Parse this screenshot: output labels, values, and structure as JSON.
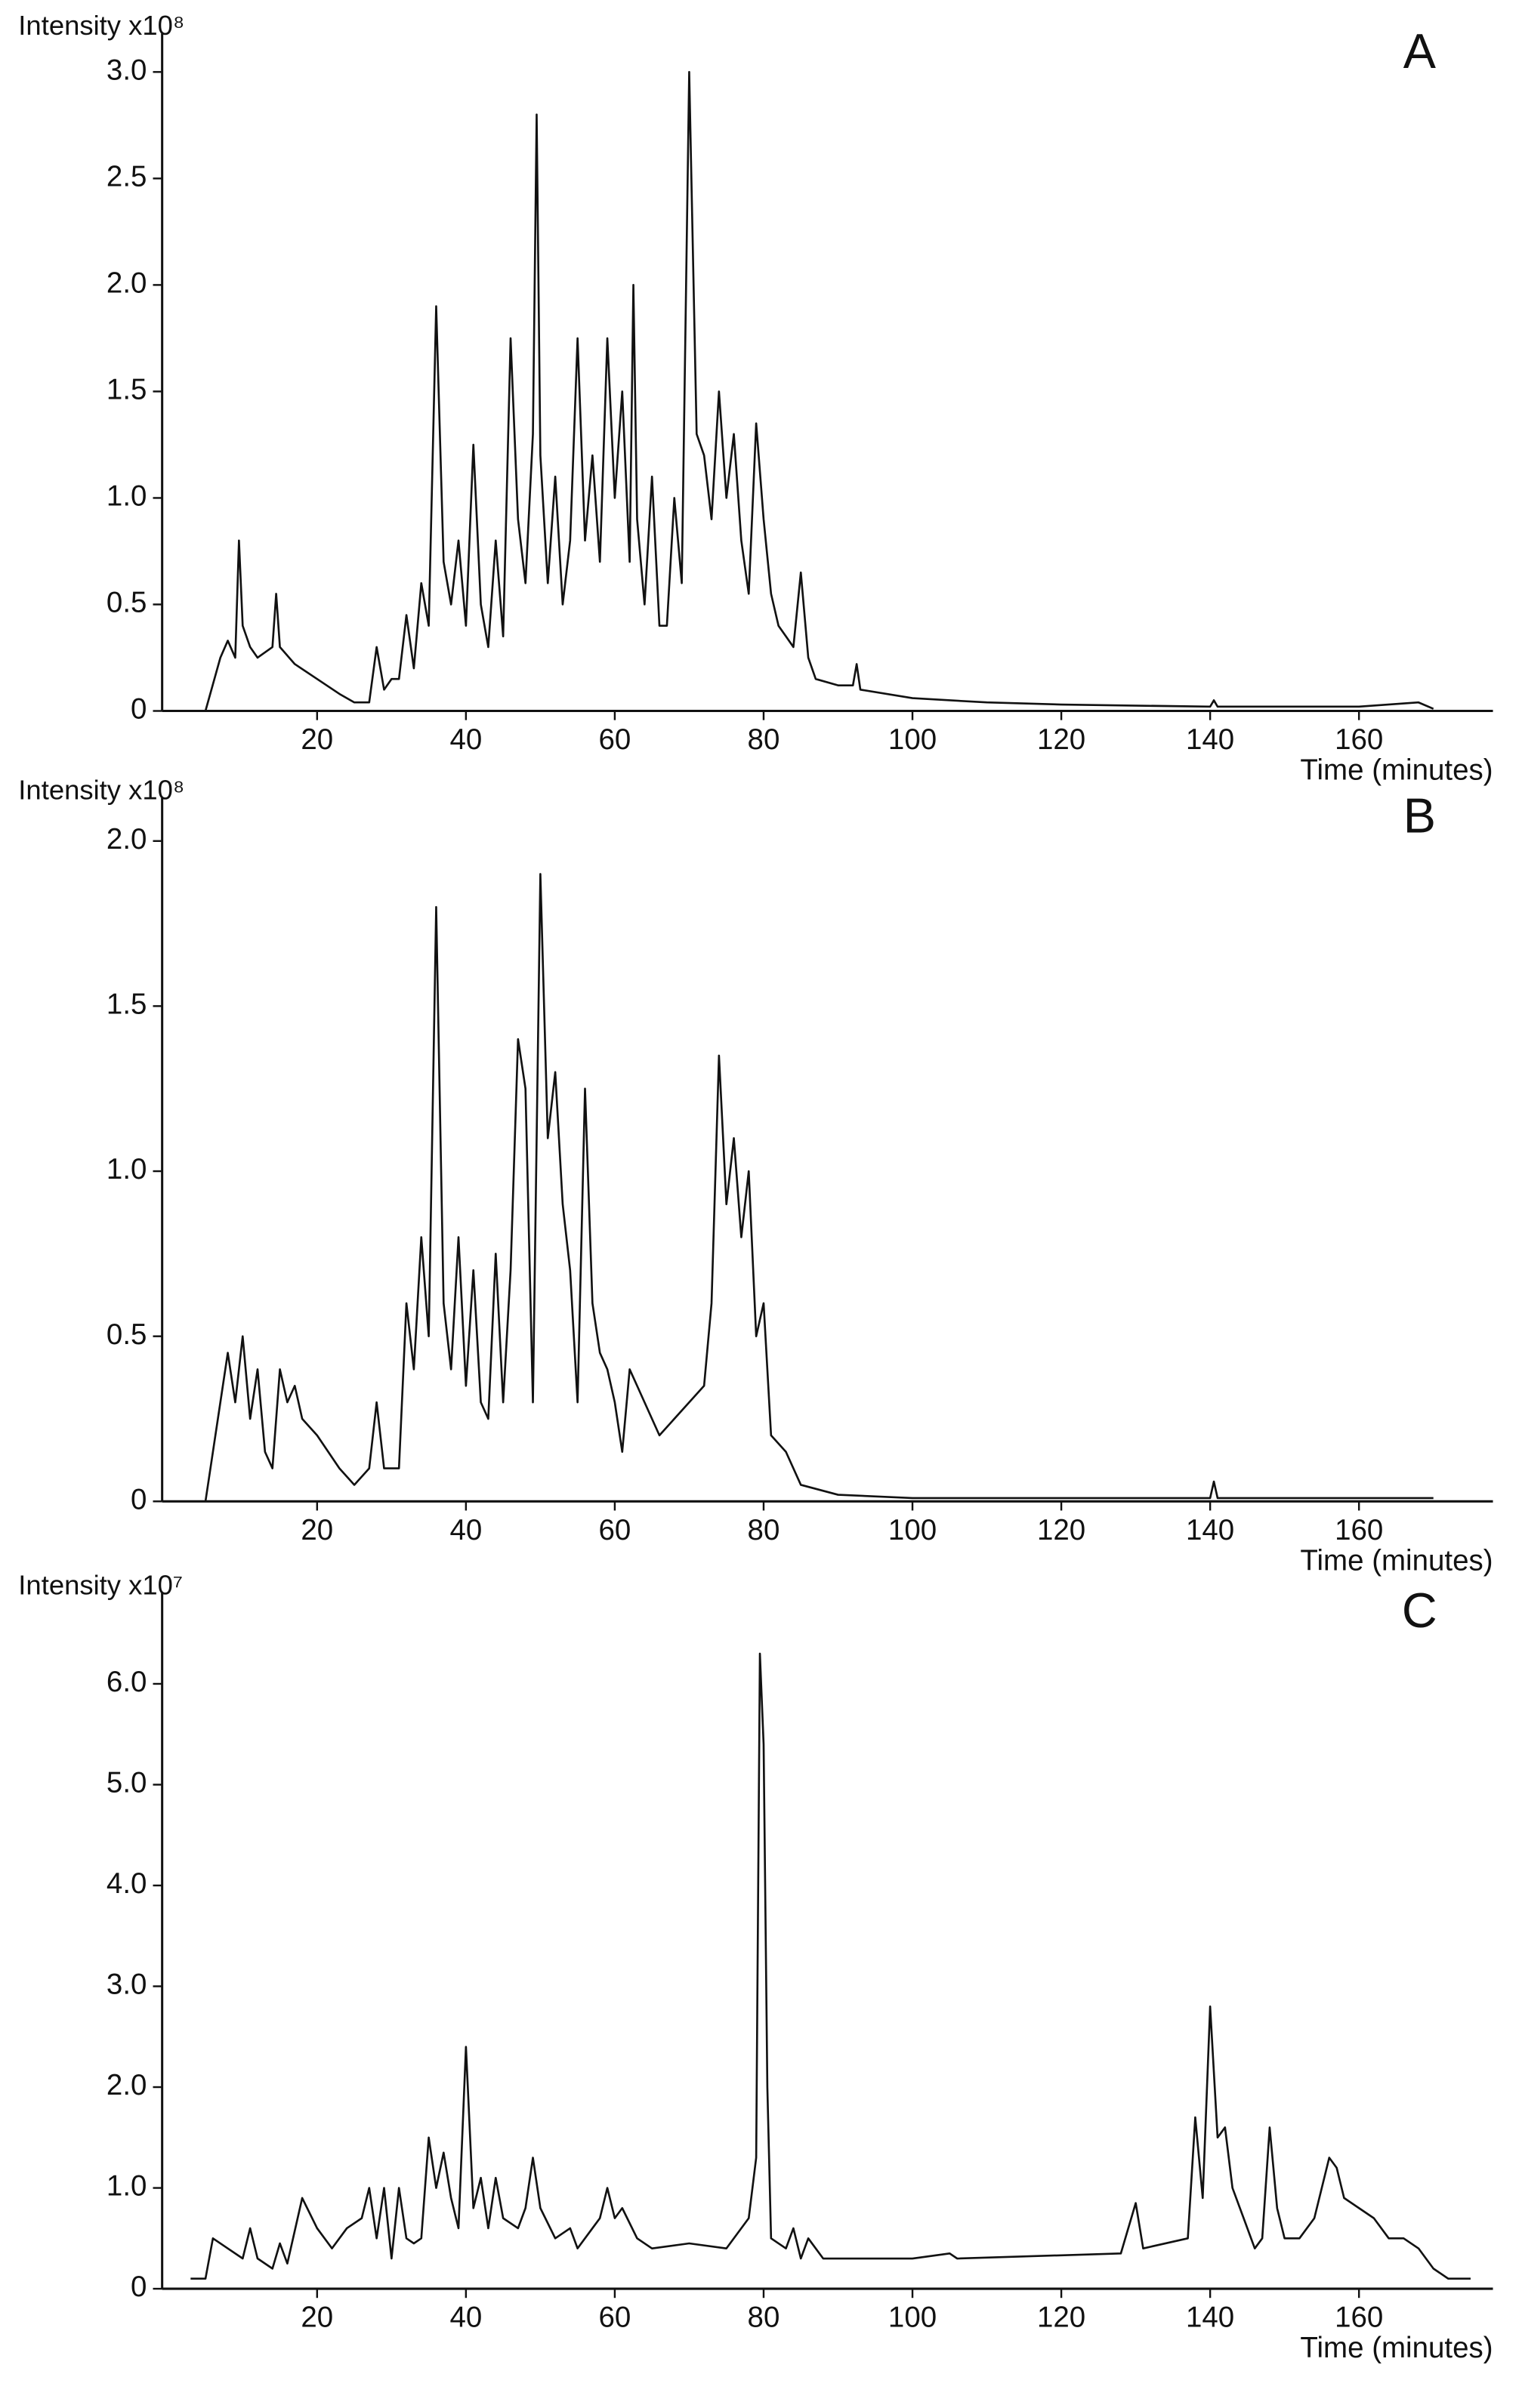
{
  "chart_data": [
    {
      "type": "line",
      "label": "A",
      "y_label": "Intensity x10⁸",
      "x_label": "Time (minutes)",
      "color": "#111111",
      "xlim": [
        0,
        178
      ],
      "ylim": [
        0,
        3.18
      ],
      "xticks": [
        20,
        40,
        60,
        80,
        100,
        120,
        140,
        160
      ],
      "yticks": [
        0,
        0.5,
        {
          "value": 1,
          "label": "1.0"
        },
        1.5,
        {
          "value": 2,
          "label": "2.0"
        },
        2.5,
        {
          "value": 3,
          "label": "3.0"
        }
      ],
      "x": [
        5,
        7,
        8,
        9,
        9.5,
        10,
        11,
        12,
        14,
        14.5,
        15,
        17,
        20,
        23,
        25,
        27,
        28,
        29,
        30,
        31,
        32,
        33,
        34,
        35,
        36,
        37,
        38,
        39,
        40,
        41,
        42,
        43,
        44,
        45,
        46,
        47,
        48,
        49,
        49.5,
        50,
        51,
        52,
        53,
        54,
        55,
        56,
        57,
        58,
        59,
        60,
        61,
        62,
        62.5,
        63,
        64,
        65,
        66,
        67,
        68,
        69,
        70,
        71,
        72,
        73,
        74,
        75,
        76,
        77,
        78,
        79,
        80,
        81,
        82,
        83,
        84,
        85,
        86,
        87,
        90,
        92,
        92.5,
        93,
        100,
        110,
        120,
        140,
        140.5,
        141,
        160,
        168,
        170
      ],
      "values": [
        0,
        0.25,
        0.33,
        0.25,
        0.8,
        0.4,
        0.3,
        0.25,
        0.3,
        0.55,
        0.3,
        0.22,
        0.15,
        0.08,
        0.04,
        0.04,
        0.3,
        0.1,
        0.15,
        0.15,
        0.45,
        0.2,
        0.6,
        0.4,
        1.9,
        0.7,
        0.5,
        0.8,
        0.4,
        1.25,
        0.5,
        0.3,
        0.8,
        0.35,
        1.75,
        0.9,
        0.6,
        1.3,
        2.8,
        1.2,
        0.6,
        1.1,
        0.5,
        0.8,
        1.75,
        0.8,
        1.2,
        0.7,
        1.75,
        1.0,
        1.5,
        0.7,
        2.0,
        0.9,
        0.5,
        1.1,
        0.4,
        0.4,
        1.0,
        0.6,
        3.0,
        1.3,
        1.2,
        0.9,
        1.5,
        1.0,
        1.3,
        0.8,
        0.55,
        1.35,
        0.9,
        0.55,
        0.4,
        0.35,
        0.3,
        0.65,
        0.25,
        0.15,
        0.12,
        0.12,
        0.22,
        0.1,
        0.06,
        0.04,
        0.03,
        0.02,
        0.05,
        0.02,
        0.02,
        0.04,
        0.01
      ]
    },
    {
      "type": "line",
      "label": "B",
      "y_label": "Intensity x10⁸",
      "x_label": "Time (minutes)",
      "color": "#111111",
      "xlim": [
        0,
        178
      ],
      "ylim": [
        0,
        2.13
      ],
      "xticks": [
        20,
        40,
        60,
        80,
        100,
        120,
        140,
        160
      ],
      "yticks": [
        0,
        0.5,
        {
          "value": 1,
          "label": "1.0"
        },
        1.5,
        {
          "value": 2,
          "label": "2.0"
        }
      ],
      "x": [
        5,
        7,
        8,
        9,
        10,
        11,
        12,
        13,
        14,
        15,
        16,
        17,
        18,
        20,
        23,
        25,
        27,
        28,
        29,
        31,
        32,
        33,
        34,
        35,
        36,
        37,
        38,
        39,
        40,
        41,
        42,
        43,
        44,
        45,
        46,
        47,
        48,
        49,
        50,
        51,
        52,
        53,
        54,
        55,
        56,
        57,
        58,
        59,
        60,
        61,
        62,
        63,
        64,
        66,
        70,
        72,
        73,
        74,
        75,
        76,
        77,
        78,
        79,
        80,
        81,
        83,
        85,
        90,
        100,
        120,
        140,
        140.5,
        141,
        170
      ],
      "values": [
        0,
        0.3,
        0.45,
        0.3,
        0.5,
        0.25,
        0.4,
        0.15,
        0.1,
        0.4,
        0.3,
        0.35,
        0.25,
        0.2,
        0.1,
        0.05,
        0.1,
        0.3,
        0.1,
        0.1,
        0.6,
        0.4,
        0.8,
        0.5,
        1.8,
        0.6,
        0.4,
        0.8,
        0.35,
        0.7,
        0.3,
        0.25,
        0.75,
        0.3,
        0.7,
        1.4,
        1.25,
        0.3,
        1.9,
        1.1,
        1.3,
        0.9,
        0.7,
        0.3,
        1.25,
        0.6,
        0.45,
        0.4,
        0.3,
        0.15,
        0.4,
        0.35,
        0.3,
        0.2,
        0.3,
        0.35,
        0.6,
        1.35,
        0.9,
        1.1,
        0.8,
        1.0,
        0.5,
        0.6,
        0.2,
        0.15,
        0.05,
        0.02,
        0.01,
        0.01,
        0.01,
        0.06,
        0.01,
        0.01
      ]
    },
    {
      "type": "line",
      "label": "C",
      "y_label": "Intensity x10⁷",
      "x_label": "Time (minutes)",
      "color": "#111111",
      "xlim": [
        0,
        178
      ],
      "ylim": [
        0,
        6.9
      ],
      "xticks": [
        20,
        40,
        60,
        80,
        100,
        120,
        140,
        160
      ],
      "yticks": [
        0,
        {
          "value": 1,
          "label": "1.0"
        },
        {
          "value": 2,
          "label": "2.0"
        },
        {
          "value": 3,
          "label": "3.0"
        },
        {
          "value": 4,
          "label": "4.0"
        },
        {
          "value": 5,
          "label": "5.0"
        },
        {
          "value": 6,
          "label": "6.0"
        }
      ],
      "x": [
        3,
        5,
        6,
        8,
        10,
        11,
        12,
        14,
        15,
        16,
        18,
        20,
        22,
        24,
        26,
        27,
        28,
        29,
        30,
        31,
        32,
        33,
        34,
        35,
        36,
        37,
        38,
        39,
        40,
        41,
        42,
        43,
        44,
        45,
        47,
        48,
        49,
        50,
        52,
        54,
        55,
        57,
        58,
        59,
        60,
        61,
        63,
        65,
        70,
        75,
        78,
        79,
        79.5,
        80,
        80.5,
        81,
        83,
        84,
        85,
        86,
        88,
        100,
        105,
        106,
        128,
        130,
        131,
        137,
        138,
        139,
        140,
        141,
        142,
        143,
        145,
        146,
        147,
        148,
        149,
        150,
        152,
        154,
        156,
        157,
        158,
        160,
        162,
        164,
        166,
        168,
        170,
        172,
        175
      ],
      "values": [
        0.1,
        0.1,
        0.5,
        0.4,
        0.3,
        0.6,
        0.3,
        0.2,
        0.45,
        0.25,
        0.9,
        0.6,
        0.4,
        0.6,
        0.7,
        1.0,
        0.5,
        1.0,
        0.3,
        1.0,
        0.5,
        0.45,
        0.5,
        1.5,
        1.0,
        1.35,
        0.9,
        0.6,
        2.4,
        0.8,
        1.1,
        0.6,
        1.1,
        0.7,
        0.6,
        0.8,
        1.3,
        0.8,
        0.5,
        0.6,
        0.4,
        0.6,
        0.7,
        1.0,
        0.7,
        0.8,
        0.5,
        0.4,
        0.45,
        0.4,
        0.7,
        1.3,
        6.3,
        5.4,
        2.0,
        0.5,
        0.4,
        0.6,
        0.3,
        0.5,
        0.3,
        0.3,
        0.35,
        0.3,
        0.35,
        0.85,
        0.4,
        0.5,
        1.7,
        0.9,
        2.8,
        1.5,
        1.6,
        1.0,
        0.6,
        0.4,
        0.5,
        1.6,
        0.8,
        0.5,
        0.5,
        0.7,
        1.3,
        1.2,
        0.9,
        0.8,
        0.7,
        0.5,
        0.5,
        0.4,
        0.2,
        0.1,
        0.1
      ]
    }
  ]
}
